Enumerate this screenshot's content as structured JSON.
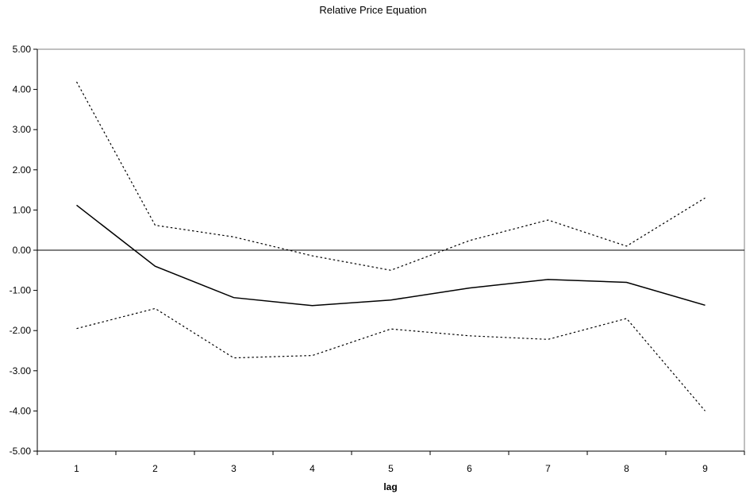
{
  "chart_data": {
    "type": "line",
    "title": "Relative Price Equation",
    "xlabel": "lag",
    "ylabel": "",
    "categories": [
      "1",
      "2",
      "3",
      "4",
      "5",
      "6",
      "7",
      "8",
      "9"
    ],
    "ylim": [
      -5,
      5
    ],
    "yticks": [
      "5.00",
      "4.00",
      "3.00",
      "2.00",
      "1.00",
      "0.00",
      "-1.00",
      "-2.00",
      "-3.00",
      "-4.00",
      "-5.00"
    ],
    "grid": false,
    "legend": "none",
    "series": [
      {
        "style": "solid",
        "color": "#000000",
        "values": [
          1.12,
          -0.4,
          -1.18,
          -1.38,
          -1.24,
          -0.94,
          -0.73,
          -0.8,
          -1.37
        ]
      },
      {
        "style": "dotted",
        "color": "#000000",
        "values": [
          4.19,
          0.62,
          0.33,
          -0.14,
          -0.5,
          0.24,
          0.75,
          0.1,
          1.3
        ]
      },
      {
        "style": "dotted",
        "color": "#000000",
        "values": [
          -1.95,
          -1.45,
          -2.68,
          -2.62,
          -1.96,
          -2.13,
          -2.22,
          -1.7,
          -4.0
        ]
      }
    ]
  }
}
